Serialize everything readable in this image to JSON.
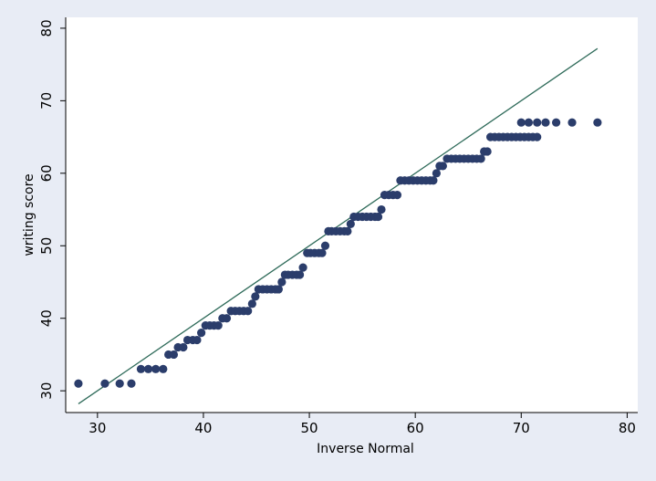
{
  "chart_data": {
    "type": "scatter",
    "title": "",
    "xlabel": "Inverse Normal",
    "ylabel": "writing score",
    "xlim": [
      27,
      81
    ],
    "ylim": [
      27,
      81.5
    ],
    "xticks": [
      30,
      40,
      50,
      60,
      70,
      80
    ],
    "yticks": [
      30,
      40,
      50,
      60,
      70,
      80
    ],
    "grid": false,
    "colors": {
      "points": "#2b3d6b",
      "line": "#2f6b5a",
      "plot_bg": "#ffffff",
      "page_bg": "#e8ecf5"
    },
    "series": [
      {
        "type": "scatter",
        "points": [
          [
            28.2,
            31
          ],
          [
            30.7,
            31
          ],
          [
            32.1,
            31
          ],
          [
            33.2,
            31
          ],
          [
            34.1,
            33
          ],
          [
            34.8,
            33
          ],
          [
            35.5,
            33
          ],
          [
            36.2,
            33
          ],
          [
            36.7,
            35
          ],
          [
            37.2,
            35
          ],
          [
            37.6,
            36
          ],
          [
            38.1,
            36
          ],
          [
            38.5,
            37
          ],
          [
            39.0,
            37
          ],
          [
            39.4,
            37
          ],
          [
            39.8,
            38
          ],
          [
            40.2,
            39
          ],
          [
            40.6,
            39
          ],
          [
            41.0,
            39
          ],
          [
            41.4,
            39
          ],
          [
            41.8,
            40
          ],
          [
            42.2,
            40
          ],
          [
            42.6,
            41
          ],
          [
            43.0,
            41
          ],
          [
            43.4,
            41
          ],
          [
            43.8,
            41
          ],
          [
            44.2,
            41
          ],
          [
            44.6,
            42
          ],
          [
            44.9,
            43
          ],
          [
            45.2,
            44
          ],
          [
            45.6,
            44
          ],
          [
            46.0,
            44
          ],
          [
            46.4,
            44
          ],
          [
            46.8,
            44
          ],
          [
            47.1,
            44
          ],
          [
            47.4,
            45
          ],
          [
            47.7,
            46
          ],
          [
            48.0,
            46
          ],
          [
            48.4,
            46
          ],
          [
            48.8,
            46
          ],
          [
            49.1,
            46
          ],
          [
            49.4,
            47
          ],
          [
            49.8,
            49
          ],
          [
            50.1,
            49
          ],
          [
            50.5,
            49
          ],
          [
            50.9,
            49
          ],
          [
            51.2,
            49
          ],
          [
            51.5,
            50
          ],
          [
            51.8,
            52
          ],
          [
            52.1,
            52
          ],
          [
            52.5,
            52
          ],
          [
            52.9,
            52
          ],
          [
            53.3,
            52
          ],
          [
            53.6,
            52
          ],
          [
            53.9,
            53
          ],
          [
            54.2,
            54
          ],
          [
            54.6,
            54
          ],
          [
            55.0,
            54
          ],
          [
            55.4,
            54
          ],
          [
            55.8,
            54
          ],
          [
            56.2,
            54
          ],
          [
            56.5,
            54
          ],
          [
            56.8,
            55
          ],
          [
            57.1,
            57
          ],
          [
            57.5,
            57
          ],
          [
            57.9,
            57
          ],
          [
            58.3,
            57
          ],
          [
            58.6,
            59
          ],
          [
            59.0,
            59
          ],
          [
            59.4,
            59
          ],
          [
            59.8,
            59
          ],
          [
            60.2,
            59
          ],
          [
            60.6,
            59
          ],
          [
            61.0,
            59
          ],
          [
            61.4,
            59
          ],
          [
            61.7,
            59
          ],
          [
            62.0,
            60
          ],
          [
            62.3,
            61
          ],
          [
            62.6,
            61
          ],
          [
            63.0,
            62
          ],
          [
            63.4,
            62
          ],
          [
            63.8,
            62
          ],
          [
            64.2,
            62
          ],
          [
            64.6,
            62
          ],
          [
            65.0,
            62
          ],
          [
            65.4,
            62
          ],
          [
            65.8,
            62
          ],
          [
            66.2,
            62
          ],
          [
            66.5,
            63
          ],
          [
            66.8,
            63
          ],
          [
            67.1,
            65
          ],
          [
            67.5,
            65
          ],
          [
            67.9,
            65
          ],
          [
            68.3,
            65
          ],
          [
            68.7,
            65
          ],
          [
            69.1,
            65
          ],
          [
            69.5,
            65
          ],
          [
            69.9,
            65
          ],
          [
            70.3,
            65
          ],
          [
            70.7,
            65
          ],
          [
            71.1,
            65
          ],
          [
            71.5,
            65
          ],
          [
            70.0,
            67
          ],
          [
            70.7,
            67
          ],
          [
            71.5,
            67
          ],
          [
            72.3,
            67
          ],
          [
            73.3,
            67
          ],
          [
            74.8,
            67
          ],
          [
            77.2,
            67
          ]
        ]
      },
      {
        "type": "line",
        "points": [
          [
            28.2,
            28.2
          ],
          [
            77.2,
            77.2
          ]
        ]
      }
    ]
  }
}
